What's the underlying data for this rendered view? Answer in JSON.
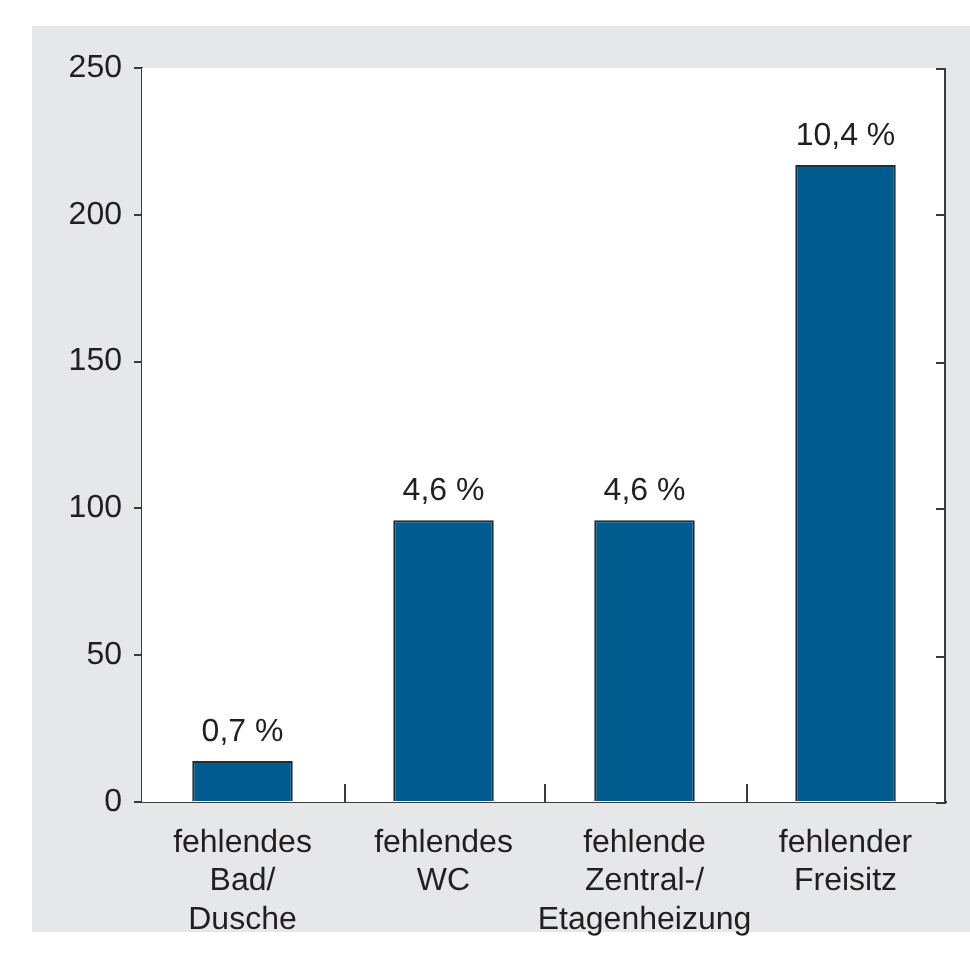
{
  "chart_data": {
    "type": "bar",
    "categories": [
      "fehlendes Bad/ Dusche",
      "fehlendes WC",
      "fehlende Zentral-/ Etagenheizung",
      "fehlender Freisitz"
    ],
    "values": [
      14,
      96,
      96,
      217
    ],
    "color": "#005b8f",
    "ylim": [
      0,
      250
    ],
    "yticks": [
      0,
      50,
      100,
      150,
      200,
      250
    ],
    "annotations": [
      {
        "text": "0,7 %",
        "x": "fehlendes Bad/ Dusche",
        "y": 14
      },
      {
        "text": "4,6 %",
        "x": "fehlendes WC",
        "y": 96
      },
      {
        "text": "4,6 %",
        "x": "fehlende Zentral-/ Etagenheizung",
        "y": 96
      },
      {
        "text": "10,4 %",
        "x": "fehlender Freisitz",
        "y": 217
      }
    ],
    "grid": false,
    "legend": false
  }
}
